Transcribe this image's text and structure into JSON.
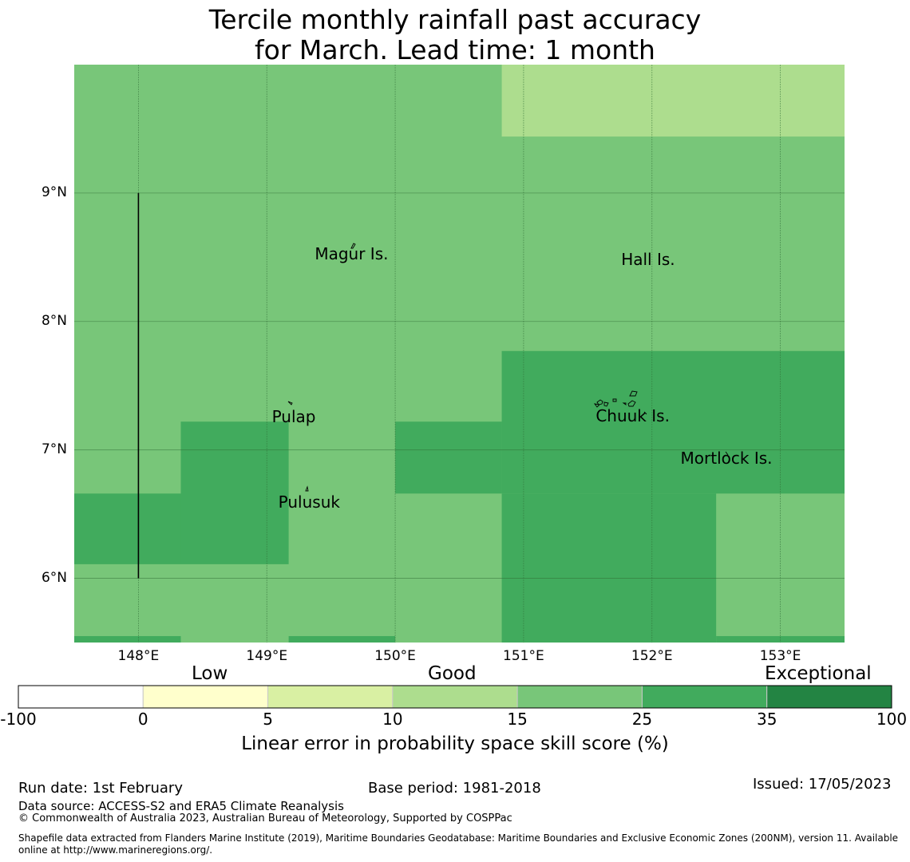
{
  "title": {
    "line1": "Tercile monthly rainfall past accuracy",
    "line2": "for March. Lead time: 1 month"
  },
  "map": {
    "lon_range": [
      147.5,
      153.5
    ],
    "lat_range": [
      5.5,
      10.0
    ],
    "lon_ticks": [
      {
        "value": 148,
        "label": "148°E"
      },
      {
        "value": 149,
        "label": "149°E"
      },
      {
        "value": 150,
        "label": "150°E"
      },
      {
        "value": 151,
        "label": "151°E"
      },
      {
        "value": 152,
        "label": "152°E"
      },
      {
        "value": 153,
        "label": "153°E"
      }
    ],
    "lat_ticks": [
      {
        "value": 9,
        "label": "9°N"
      },
      {
        "value": 8,
        "label": "8°N"
      },
      {
        "value": 7,
        "label": "7°N"
      },
      {
        "value": 6,
        "label": "6°N"
      }
    ],
    "base_color": "#78c679",
    "skill_regions": [
      {
        "lon": [
          150.83,
          153.5
        ],
        "lat": [
          9.44,
          10.0
        ],
        "color": "#addd8e"
      },
      {
        "lon": [
          150.83,
          153.5
        ],
        "lat": [
          6.66,
          7.77
        ],
        "color": "#41ab5d"
      },
      {
        "lon": [
          150.83,
          152.5
        ],
        "lat": [
          5.5,
          6.66
        ],
        "color": "#41ab5d"
      },
      {
        "lon": [
          150.0,
          150.83
        ],
        "lat": [
          6.66,
          7.22
        ],
        "color": "#41ab5d"
      },
      {
        "lon": [
          148.33,
          149.17
        ],
        "lat": [
          6.11,
          7.22
        ],
        "color": "#41ab5d"
      },
      {
        "lon": [
          147.5,
          148.33
        ],
        "lat": [
          6.11,
          6.66
        ],
        "color": "#41ab5d"
      },
      {
        "lon": [
          147.5,
          148.33
        ],
        "lat": [
          5.5,
          5.55
        ],
        "color": "#41ab5d"
      },
      {
        "lon": [
          149.17,
          150.0
        ],
        "lat": [
          5.5,
          5.55
        ],
        "color": "#41ab5d"
      },
      {
        "lon": [
          152.5,
          153.5
        ],
        "lat": [
          5.5,
          5.55
        ],
        "color": "#41ab5d"
      }
    ],
    "boundary_line": {
      "lon": 148.0,
      "lat": [
        6.0,
        9.0
      ]
    },
    "places": [
      {
        "name": "Magur Is.",
        "lon": 149.66,
        "lat": 8.52
      },
      {
        "name": "Hall Is.",
        "lon": 151.97,
        "lat": 8.48
      },
      {
        "name": "Pulap",
        "lon": 149.21,
        "lat": 7.25
      },
      {
        "name": "Chuuk Is.",
        "lon": 151.85,
        "lat": 7.26
      },
      {
        "name": "Mortlock Is.",
        "lon": 152.58,
        "lat": 6.93
      },
      {
        "name": "Pulusuk",
        "lon": 149.33,
        "lat": 6.59
      }
    ]
  },
  "colorbar": {
    "categories": [
      "Low",
      "Good",
      "Exceptional"
    ],
    "bins": [
      {
        "from": -100,
        "to": 0,
        "color": "#ffffff"
      },
      {
        "from": 0,
        "to": 5,
        "color": "#ffffcc"
      },
      {
        "from": 5,
        "to": 10,
        "color": "#d9f0a3"
      },
      {
        "from": 10,
        "to": 15,
        "color": "#addd8e"
      },
      {
        "from": 15,
        "to": 25,
        "color": "#78c679"
      },
      {
        "from": 25,
        "to": 35,
        "color": "#41ab5d"
      },
      {
        "from": 35,
        "to": 100,
        "color": "#238443"
      }
    ],
    "tick_labels": [
      "-100",
      "0",
      "5",
      "10",
      "15",
      "25",
      "35",
      "100"
    ],
    "label": "Linear error in probability space skill score (%)"
  },
  "footer": {
    "run_date": "Run date: 1st February",
    "base_period": "Base period: 1981-2018",
    "issued": "Issued: 17/05/2023",
    "data_source": "Data source: ACCESS-S2 and ERA5 Climate Reanalysis",
    "copyright": "© Commonwealth of Australia 2023, Australian Bureau of Meteorology, Supported by COSPPac",
    "shapefile_line1": "Shapefile data extracted from Flanders Marine Institute (2019), Maritime Boundaries Geodatabase: Maritime Boundaries and Exclusive Economic Zones (200NM), version 11. Available",
    "shapefile_line2": "online at http://www.marineregions.org/."
  }
}
